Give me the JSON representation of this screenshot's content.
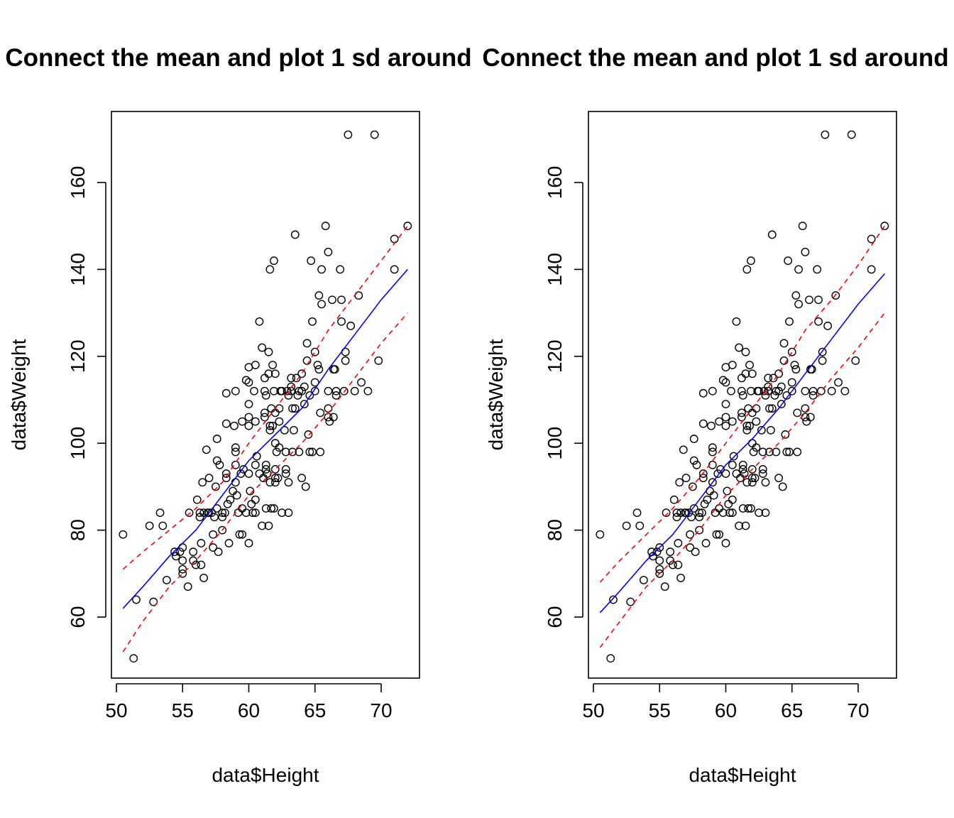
{
  "colors": {
    "points": "#000000",
    "mean_line": "#0000FF",
    "sd_lines": "#FF0000",
    "background": "#FFFFFF"
  },
  "chart_data": [
    {
      "type": "scatter",
      "title": "Connect the mean and plot 1 sd around",
      "xlabel": "data$Height",
      "ylabel": "data$Weight",
      "xlim": [
        50,
        72
      ],
      "ylim": [
        50,
        172
      ],
      "xticks": [
        "50",
        "55",
        "60",
        "65",
        "70"
      ],
      "yticks": [
        "60",
        "80",
        "100",
        "120",
        "140",
        "160"
      ],
      "grid": false,
      "points": [
        [
          50.5,
          79
        ],
        [
          51.3,
          50.5
        ],
        [
          51.5,
          64
        ],
        [
          52.5,
          81
        ],
        [
          52.8,
          63.5
        ],
        [
          53.3,
          84
        ],
        [
          53.5,
          81
        ],
        [
          53.8,
          68.5
        ],
        [
          54.4,
          75
        ],
        [
          54.5,
          74
        ],
        [
          54.8,
          75
        ],
        [
          55.0,
          76
        ],
        [
          55.0,
          73
        ],
        [
          55.0,
          71
        ],
        [
          55.0,
          70
        ],
        [
          55.4,
          67
        ],
        [
          55.5,
          84
        ],
        [
          55.8,
          75
        ],
        [
          55.8,
          73
        ],
        [
          56.0,
          72
        ],
        [
          56.1,
          87
        ],
        [
          56.3,
          84
        ],
        [
          56.3,
          83
        ],
        [
          56.4,
          77
        ],
        [
          56.4,
          72
        ],
        [
          56.5,
          91
        ],
        [
          56.6,
          84
        ],
        [
          56.6,
          69
        ],
        [
          56.8,
          98.5
        ],
        [
          56.9,
          84
        ],
        [
          57.0,
          84
        ],
        [
          57.0,
          92
        ],
        [
          57.2,
          84
        ],
        [
          57.3,
          79
        ],
        [
          57.3,
          76
        ],
        [
          57.4,
          83
        ],
        [
          57.5,
          90
        ],
        [
          57.6,
          101
        ],
        [
          57.6,
          96
        ],
        [
          57.6,
          85
        ],
        [
          57.7,
          75
        ],
        [
          57.8,
          95
        ],
        [
          58.0,
          84
        ],
        [
          58.0,
          83
        ],
        [
          58.0,
          80
        ],
        [
          58.2,
          84
        ],
        [
          58.3,
          111.5
        ],
        [
          58.3,
          104.5
        ],
        [
          58.3,
          93
        ],
        [
          58.3,
          92
        ],
        [
          58.4,
          86
        ],
        [
          58.5,
          77
        ],
        [
          58.6,
          87
        ],
        [
          58.8,
          89
        ],
        [
          58.9,
          104
        ],
        [
          59.0,
          112
        ],
        [
          59.0,
          99
        ],
        [
          59.0,
          98
        ],
        [
          59.0,
          95
        ],
        [
          59.0,
          91
        ],
        [
          59.1,
          88
        ],
        [
          59.2,
          84
        ],
        [
          59.3,
          79
        ],
        [
          59.4,
          93
        ],
        [
          59.5,
          105
        ],
        [
          59.5,
          79
        ],
        [
          59.5,
          85
        ],
        [
          59.6,
          94
        ],
        [
          59.8,
          114.5
        ],
        [
          59.8,
          84
        ],
        [
          60.0,
          117.5
        ],
        [
          60.0,
          114
        ],
        [
          60.0,
          109
        ],
        [
          60.0,
          106
        ],
        [
          60.0,
          104
        ],
        [
          60.0,
          93
        ],
        [
          60.0,
          77
        ],
        [
          60.1,
          89
        ],
        [
          60.2,
          86
        ],
        [
          60.3,
          84
        ],
        [
          60.4,
          112
        ],
        [
          60.5,
          118
        ],
        [
          60.5,
          105
        ],
        [
          60.5,
          95
        ],
        [
          60.5,
          87
        ],
        [
          60.5,
          84
        ],
        [
          60.6,
          97
        ],
        [
          60.8,
          128
        ],
        [
          60.8,
          93
        ],
        [
          61.0,
          122
        ],
        [
          61.0,
          81
        ],
        [
          61.1,
          92
        ],
        [
          61.2,
          115
        ],
        [
          61.2,
          112
        ],
        [
          61.2,
          107
        ],
        [
          61.2,
          106
        ],
        [
          61.3,
          111
        ],
        [
          61.3,
          95
        ],
        [
          61.3,
          94
        ],
        [
          61.3,
          85
        ],
        [
          61.4,
          93
        ],
        [
          61.5,
          121
        ],
        [
          61.5,
          116
        ],
        [
          61.5,
          81
        ],
        [
          61.6,
          140
        ],
        [
          61.6,
          104
        ],
        [
          61.6,
          103
        ],
        [
          61.6,
          91
        ],
        [
          61.7,
          108
        ],
        [
          61.7,
          85
        ],
        [
          61.8,
          118
        ],
        [
          61.8,
          104
        ],
        [
          61.9,
          142
        ],
        [
          61.9,
          112
        ],
        [
          61.9,
          85
        ],
        [
          62.0,
          116
        ],
        [
          62.0,
          107
        ],
        [
          62.0,
          100
        ],
        [
          62.0,
          94
        ],
        [
          62.0,
          92
        ],
        [
          62.0,
          91
        ],
        [
          62.1,
          98
        ],
        [
          62.2,
          92
        ],
        [
          62.3,
          108
        ],
        [
          62.3,
          105
        ],
        [
          62.3,
          99
        ],
        [
          62.4,
          112
        ],
        [
          62.5,
          112
        ],
        [
          62.5,
          84
        ],
        [
          62.7,
          103
        ],
        [
          62.8,
          94
        ],
        [
          62.8,
          93
        ],
        [
          62.8,
          98
        ],
        [
          62.9,
          112
        ],
        [
          63.0,
          111
        ],
        [
          63.0,
          91
        ],
        [
          63.0,
          84
        ],
        [
          63.2,
          115
        ],
        [
          63.2,
          113
        ],
        [
          63.2,
          112
        ],
        [
          63.3,
          108
        ],
        [
          63.3,
          98
        ],
        [
          63.4,
          103
        ],
        [
          63.5,
          148
        ],
        [
          63.5,
          108
        ],
        [
          63.6,
          115
        ],
        [
          63.7,
          111
        ],
        [
          63.8,
          112
        ],
        [
          63.8,
          98
        ],
        [
          64.0,
          116
        ],
        [
          64.0,
          112
        ],
        [
          64.0,
          92
        ],
        [
          64.2,
          113
        ],
        [
          64.2,
          109
        ],
        [
          64.3,
          90
        ],
        [
          64.4,
          123
        ],
        [
          64.4,
          119
        ],
        [
          64.5,
          102
        ],
        [
          64.6,
          111
        ],
        [
          64.6,
          98
        ],
        [
          64.7,
          142
        ],
        [
          64.8,
          128
        ],
        [
          64.8,
          98
        ],
        [
          65.0,
          121
        ],
        [
          65.0,
          114
        ],
        [
          65.0,
          112
        ],
        [
          65.2,
          118
        ],
        [
          65.3,
          134
        ],
        [
          65.3,
          117
        ],
        [
          65.4,
          107
        ],
        [
          65.4,
          98
        ],
        [
          65.5,
          140
        ],
        [
          65.5,
          132
        ],
        [
          65.8,
          150
        ],
        [
          66.0,
          144
        ],
        [
          66.0,
          112
        ],
        [
          66.0,
          108
        ],
        [
          66.0,
          106
        ],
        [
          66.1,
          105
        ],
        [
          66.3,
          133
        ],
        [
          66.4,
          117
        ],
        [
          66.4,
          106
        ],
        [
          66.5,
          117
        ],
        [
          66.6,
          112
        ],
        [
          66.6,
          111
        ],
        [
          66.9,
          140
        ],
        [
          67.0,
          133
        ],
        [
          67.0,
          128
        ],
        [
          67.2,
          112
        ],
        [
          67.3,
          121
        ],
        [
          67.3,
          119
        ],
        [
          67.5,
          171
        ],
        [
          67.7,
          127
        ],
        [
          68.0,
          112
        ],
        [
          68.3,
          134
        ],
        [
          68.5,
          114
        ],
        [
          69.0,
          112
        ],
        [
          69.5,
          171
        ],
        [
          69.8,
          119
        ],
        [
          71.0,
          147
        ],
        [
          71.0,
          140
        ],
        [
          72.0,
          150
        ]
      ],
      "mean_line": {
        "x": [
          50.5,
          52,
          54,
          56,
          58,
          60,
          62,
          64,
          66,
          68,
          70,
          72
        ],
        "y": [
          62,
          67,
          74,
          80,
          88,
          96,
          102,
          108,
          117,
          125,
          133,
          140
        ]
      },
      "sd_upper": {
        "x": [
          50.5,
          52,
          54,
          56,
          58,
          60,
          62,
          64,
          66,
          68,
          70,
          72
        ],
        "y": [
          71,
          75,
          80,
          85,
          91,
          100,
          108,
          116,
          126,
          134,
          142,
          150
        ]
      },
      "sd_lower": {
        "x": [
          50.5,
          52,
          54,
          56,
          58,
          60,
          62,
          64,
          66,
          68,
          70,
          72
        ],
        "y": [
          52,
          59,
          67,
          73,
          80,
          88,
          94,
          100,
          107,
          115,
          123,
          130
        ]
      }
    },
    {
      "type": "scatter",
      "title": "Connect the mean and plot 1 sd around",
      "xlabel": "data$Height",
      "ylabel": "data$Weight",
      "xlim": [
        50,
        72
      ],
      "ylim": [
        50,
        172
      ],
      "xticks": [
        "50",
        "55",
        "60",
        "65",
        "70"
      ],
      "yticks": [
        "60",
        "80",
        "100",
        "120",
        "140",
        "160"
      ],
      "grid": false,
      "points": "same as first panel",
      "mean_line": {
        "x": [
          50.5,
          52,
          54,
          56,
          58,
          60,
          62,
          64,
          66,
          68,
          70,
          72
        ],
        "y": [
          61,
          66,
          73,
          79,
          87,
          95,
          101,
          108,
          116,
          124,
          132,
          139
        ]
      },
      "sd_upper": {
        "x": [
          50.5,
          52,
          54,
          56,
          58,
          60,
          62,
          64,
          66,
          68,
          70,
          72
        ],
        "y": [
          68,
          73,
          79,
          85,
          92,
          100,
          108,
          116,
          126,
          133,
          141,
          150
        ]
      },
      "sd_lower": {
        "x": [
          50.5,
          52,
          54,
          56,
          58,
          60,
          62,
          64,
          66,
          68,
          70,
          72
        ],
        "y": [
          53,
          59,
          67,
          73,
          80,
          88,
          94,
          100,
          107,
          115,
          122,
          130
        ]
      }
    }
  ]
}
